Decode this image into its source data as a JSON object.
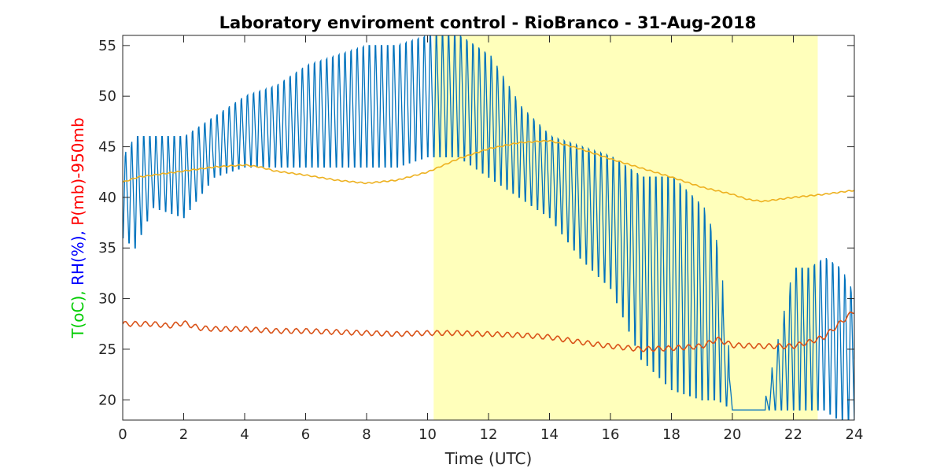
{
  "chart_data": {
    "type": "line",
    "title": "Laboratory enviroment control - RioBranco - 31-Aug-2018",
    "xlabel": "Time (UTC)",
    "ylabel_parts": [
      {
        "text": "T(oC), ",
        "color": "#00cc00"
      },
      {
        "text": "RH(%), ",
        "color": "#0000ff"
      },
      {
        "text": "P(mb)-950mb",
        "color": "#ff0000"
      }
    ],
    "xlim": [
      0,
      24
    ],
    "ylim": [
      18,
      56
    ],
    "xticks": [
      0,
      2,
      4,
      6,
      8,
      10,
      12,
      14,
      16,
      18,
      20,
      22,
      24
    ],
    "yticks": [
      20,
      25,
      30,
      35,
      40,
      45,
      50,
      55
    ],
    "grid": false,
    "highlight_span": {
      "x0": 10.2,
      "x1": 22.8,
      "color": "#ffffbb"
    },
    "series": [
      {
        "color": "#0072bd",
        "kind": "oscillating",
        "envelope": {
          "x": [
            0,
            0.4,
            1,
            2,
            3,
            4,
            5,
            6,
            7,
            8,
            9,
            10,
            11,
            12,
            13,
            14,
            15,
            16,
            17,
            18,
            19,
            19.5,
            20,
            21,
            22,
            22.5,
            23,
            23.5,
            24
          ],
          "high": [
            44,
            46,
            46,
            46,
            48,
            50,
            51,
            53,
            54,
            55,
            55,
            56,
            56,
            54,
            49,
            46,
            45,
            44,
            42,
            42,
            39,
            35,
            19,
            19,
            33,
            33,
            34,
            33,
            30
          ],
          "low": [
            36,
            35,
            39,
            38,
            42,
            43,
            43,
            43,
            43,
            43,
            43,
            44,
            44,
            42,
            40,
            38,
            34,
            31,
            24,
            21,
            20,
            20,
            19,
            19,
            19,
            19,
            19,
            18,
            18
          ]
        },
        "period_h": 0.2
      },
      {
        "color": "#edb120",
        "kind": "smooth",
        "x": [
          0,
          0.5,
          1,
          2,
          3,
          4,
          4.5,
          5,
          6,
          7,
          8,
          9,
          10,
          11,
          12,
          13,
          14,
          15,
          16,
          17,
          18,
          19,
          20,
          20.5,
          21,
          22,
          23,
          24
        ],
        "y": [
          41.5,
          42.0,
          42.2,
          42.6,
          43.0,
          43.2,
          43.0,
          42.6,
          42.2,
          41.7,
          41.4,
          41.7,
          42.5,
          43.8,
          44.8,
          45.4,
          45.6,
          44.8,
          43.8,
          42.9,
          42.0,
          41.0,
          40.3,
          39.8,
          39.6,
          40.0,
          40.3,
          40.7
        ]
      },
      {
        "color": "#d95319",
        "kind": "smooth",
        "x": [
          0,
          1,
          1.5,
          2,
          2.5,
          3,
          4,
          5,
          6,
          7,
          8,
          9,
          10,
          11,
          12,
          13,
          14,
          15,
          16,
          17,
          18,
          19,
          19.5,
          20,
          21,
          22,
          22.5,
          23,
          24
        ],
        "y": [
          27.5,
          27.5,
          27.3,
          27.6,
          27.1,
          27.0,
          27.0,
          26.8,
          26.8,
          26.7,
          26.6,
          26.5,
          26.6,
          26.6,
          26.5,
          26.4,
          26.2,
          25.7,
          25.3,
          25.0,
          25.1,
          25.3,
          26.0,
          25.4,
          25.3,
          25.3,
          25.7,
          26.2,
          28.8
        ]
      }
    ]
  }
}
